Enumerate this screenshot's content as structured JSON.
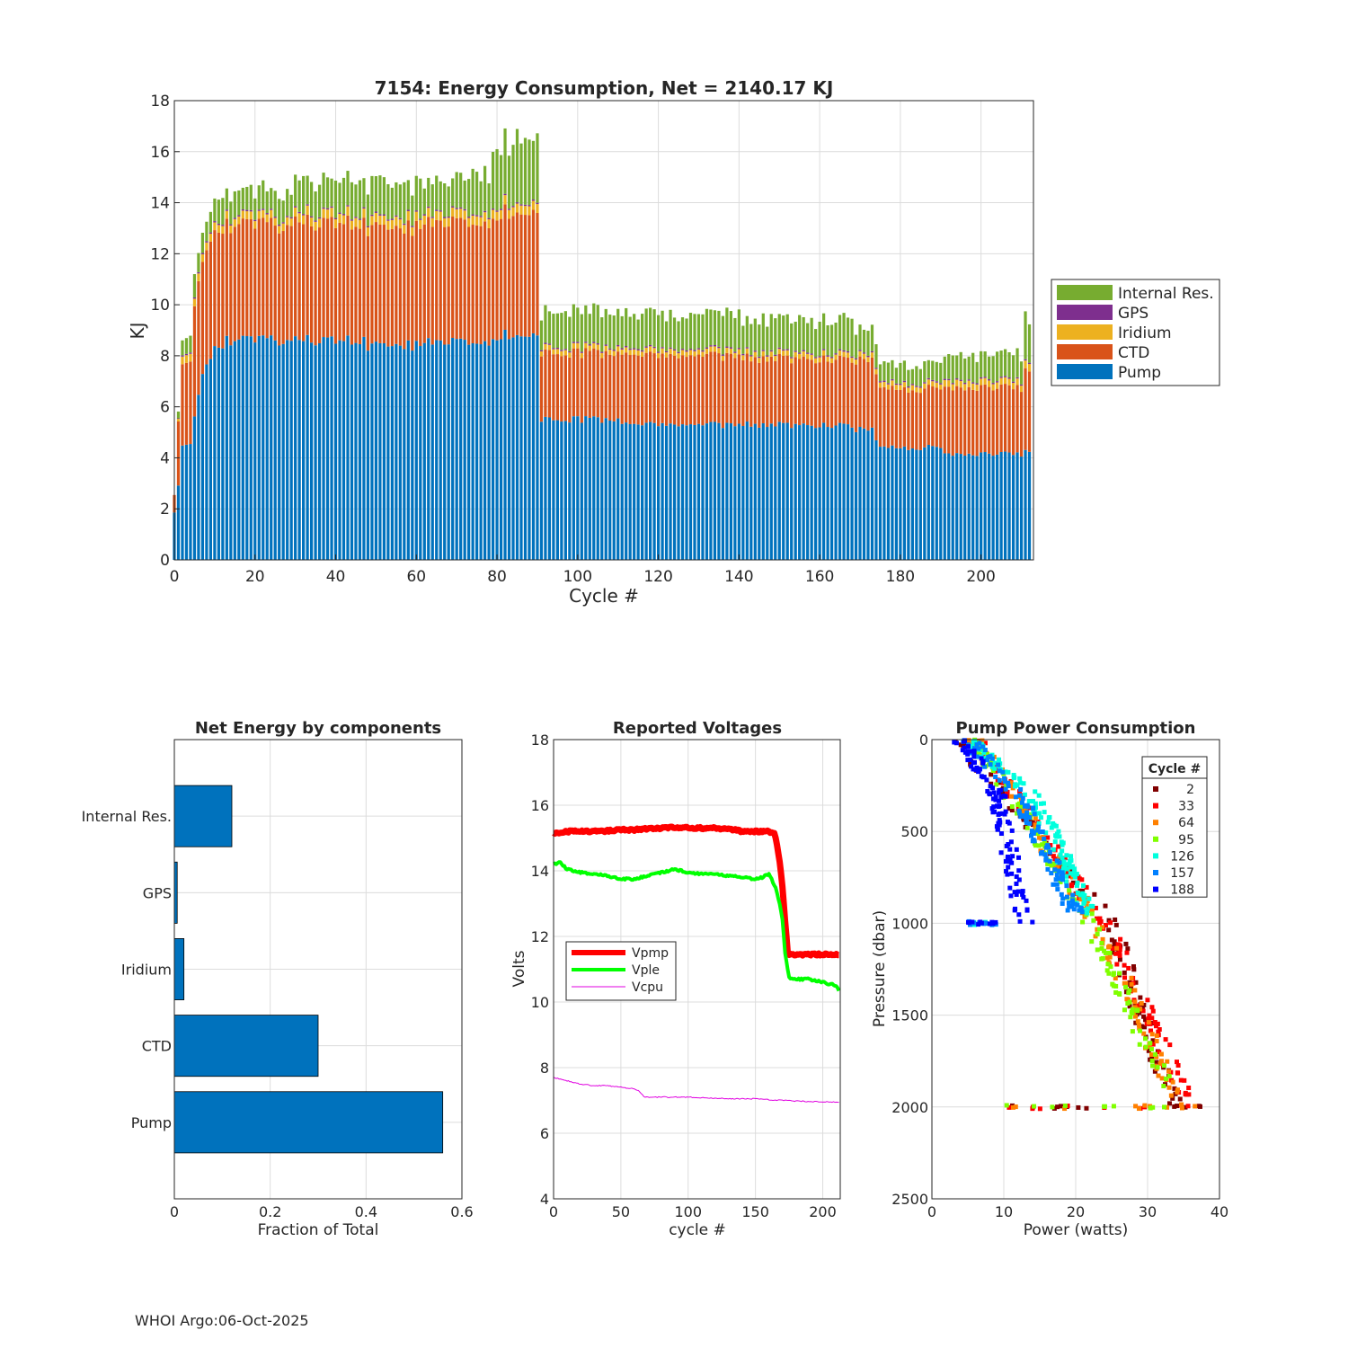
{
  "footer": "WHOI Argo:06-Oct-2025",
  "chart_data": [
    {
      "type": "bar",
      "stacked": true,
      "title": "7154: Energy Consumption,  Net = 2140.17 KJ",
      "xlabel": "Cycle #",
      "ylabel": "KJ",
      "xlim": [
        0,
        213
      ],
      "ylim": [
        0,
        18
      ],
      "xticks": [
        0,
        20,
        40,
        60,
        80,
        100,
        120,
        140,
        160,
        180,
        200
      ],
      "yticks": [
        0,
        2,
        4,
        6,
        8,
        10,
        12,
        14,
        16,
        18
      ],
      "grid": true,
      "legend_location": "east-outside",
      "legend_order": [
        "Internal Res.",
        "GPS",
        "Iridium",
        "CTD",
        "Pump"
      ],
      "colors": {
        "Pump": "#0072BD",
        "CTD": "#D95319",
        "Iridium": "#EDB120",
        "GPS": "#7E2F8E",
        "Internal Res.": "#77AC30"
      },
      "segments": [
        {
          "from": 0,
          "to": 0,
          "Pump": 1.9,
          "CTD": 0.7,
          "Iridium": 0.0,
          "GPS": 0.0,
          "Internal Res.": 0.0
        },
        {
          "from": 1,
          "to": 1,
          "Pump": 2.9,
          "CTD": 2.5,
          "Iridium": 0.1,
          "GPS": 0.02,
          "Internal Res.": 0.3
        },
        {
          "from": 2,
          "to": 4,
          "Pump": 4.5,
          "CTD": 3.2,
          "Iridium": 0.3,
          "GPS": 0.05,
          "Internal Res.": 0.6
        },
        {
          "from": 5,
          "to": 5,
          "Pump": 5.6,
          "CTD": 4.3,
          "Iridium": 0.3,
          "GPS": 0.05,
          "Internal Res.": 0.8
        },
        {
          "from": 6,
          "to": 6,
          "Pump": 6.4,
          "CTD": 4.4,
          "Iridium": 0.3,
          "GPS": 0.05,
          "Internal Res.": 0.8
        },
        {
          "from": 7,
          "to": 7,
          "Pump": 7.3,
          "CTD": 4.4,
          "Iridium": 0.3,
          "GPS": 0.05,
          "Internal Res.": 0.8
        },
        {
          "from": 8,
          "to": 9,
          "Pump": 7.7,
          "CTD": 4.5,
          "Iridium": 0.3,
          "GPS": 0.05,
          "Internal Res.": 0.9
        },
        {
          "from": 10,
          "to": 12,
          "Pump": 8.3,
          "CTD": 4.5,
          "Iridium": 0.3,
          "GPS": 0.05,
          "Internal Res.": 1.0
        },
        {
          "from": 13,
          "to": 29,
          "Pump": 8.6,
          "CTD": 4.5,
          "Iridium": 0.3,
          "GPS": 0.05,
          "Internal Res.": 0.95
        },
        {
          "from": 30,
          "to": 47,
          "Pump": 8.6,
          "CTD": 4.6,
          "Iridium": 0.35,
          "GPS": 0.05,
          "Internal Res.": 1.3
        },
        {
          "from": 48,
          "to": 61,
          "Pump": 8.4,
          "CTD": 4.6,
          "Iridium": 0.35,
          "GPS": 0.05,
          "Internal Res.": 1.4
        },
        {
          "from": 62,
          "to": 72,
          "Pump": 8.6,
          "CTD": 4.7,
          "Iridium": 0.35,
          "GPS": 0.05,
          "Internal Res.": 1.2
        },
        {
          "from": 73,
          "to": 78,
          "Pump": 8.4,
          "CTD": 4.6,
          "Iridium": 0.35,
          "GPS": 0.05,
          "Internal Res.": 1.6
        },
        {
          "from": 79,
          "to": 90,
          "Pump": 8.8,
          "CTD": 4.8,
          "Iridium": 0.35,
          "GPS": 0.05,
          "Internal Res.": 2.5
        },
        {
          "from": 91,
          "to": 110,
          "Pump": 5.5,
          "CTD": 2.6,
          "Iridium": 0.2,
          "GPS": 0.05,
          "Internal Res.": 1.3
        },
        {
          "from": 111,
          "to": 140,
          "Pump": 5.3,
          "CTD": 2.7,
          "Iridium": 0.2,
          "GPS": 0.05,
          "Internal Res.": 1.3
        },
        {
          "from": 141,
          "to": 168,
          "Pump": 5.3,
          "CTD": 2.6,
          "Iridium": 0.2,
          "GPS": 0.05,
          "Internal Res.": 1.3
        },
        {
          "from": 169,
          "to": 173,
          "Pump": 5.1,
          "CTD": 2.7,
          "Iridium": 0.2,
          "GPS": 0.05,
          "Internal Res.": 0.9
        },
        {
          "from": 174,
          "to": 174,
          "Pump": 4.7,
          "CTD": 2.6,
          "Iridium": 0.2,
          "GPS": 0.05,
          "Internal Res.": 0.8
        },
        {
          "from": 175,
          "to": 190,
          "Pump": 4.4,
          "CTD": 2.3,
          "Iridium": 0.2,
          "GPS": 0.05,
          "Internal Res.": 0.7
        },
        {
          "from": 191,
          "to": 210,
          "Pump": 4.15,
          "CTD": 2.6,
          "Iridium": 0.25,
          "GPS": 0.05,
          "Internal Res.": 1.0
        },
        {
          "from": 211,
          "to": 212,
          "Pump": 4.3,
          "CTD": 3.2,
          "Iridium": 0.3,
          "GPS": 0.05,
          "Internal Res.": 1.6
        }
      ]
    },
    {
      "type": "bar",
      "orientation": "horizontal",
      "title": "Net Energy by components",
      "xlabel": "Fraction of Total",
      "ylabel": "",
      "categories": [
        "Pump",
        "CTD",
        "Iridium",
        "GPS",
        "Internal Res."
      ],
      "values": [
        0.56,
        0.3,
        0.02,
        0.006,
        0.12
      ],
      "xlim": [
        0,
        0.6
      ],
      "xticks": [
        0,
        0.2,
        0.4,
        0.6
      ],
      "xticklabels": [
        "0",
        "0.2",
        "0.4",
        "0.6"
      ],
      "color": "#0072BD"
    },
    {
      "type": "line",
      "title": "Reported Voltages",
      "xlabel": "cycle #",
      "ylabel": "Volts",
      "xlim": [
        0,
        213
      ],
      "ylim": [
        4,
        18
      ],
      "xticks": [
        0,
        50,
        100,
        150,
        200
      ],
      "yticks": [
        4,
        6,
        8,
        10,
        12,
        14,
        16,
        18
      ],
      "legend_location": "center-left",
      "series": [
        {
          "name": "Vpmp",
          "color": "#FF0000",
          "width": 7,
          "x": [
            0,
            10,
            20,
            30,
            40,
            50,
            60,
            70,
            80,
            90,
            100,
            110,
            120,
            130,
            140,
            150,
            160,
            164,
            166,
            168,
            170,
            172,
            174,
            175,
            180,
            190,
            200,
            213
          ],
          "y": [
            15.15,
            15.2,
            15.2,
            15.2,
            15.22,
            15.25,
            15.25,
            15.28,
            15.3,
            15.32,
            15.32,
            15.3,
            15.3,
            15.28,
            15.2,
            15.2,
            15.2,
            15.15,
            14.8,
            14.3,
            13.5,
            12.5,
            11.5,
            11.45,
            11.45,
            11.45,
            11.45,
            11.45
          ]
        },
        {
          "name": "Vple",
          "color": "#00FF00",
          "width": 4,
          "x": [
            0,
            5,
            10,
            15,
            20,
            30,
            40,
            50,
            60,
            70,
            80,
            90,
            100,
            110,
            120,
            130,
            140,
            150,
            155,
            160,
            165,
            168,
            170,
            172,
            175,
            180,
            190,
            200,
            205,
            210,
            213
          ],
          "y": [
            14.2,
            14.25,
            14.05,
            14.0,
            13.95,
            13.9,
            13.85,
            13.75,
            13.75,
            13.85,
            13.95,
            14.05,
            13.95,
            13.9,
            13.9,
            13.85,
            13.8,
            13.75,
            13.8,
            13.9,
            13.5,
            13.0,
            12.5,
            11.5,
            10.75,
            10.7,
            10.7,
            10.6,
            10.55,
            10.5,
            10.25
          ]
        },
        {
          "name": "Vcpu",
          "color": "#E000E0",
          "width": 1,
          "x": [
            0,
            10,
            20,
            30,
            40,
            50,
            60,
            63,
            65,
            68,
            70,
            80,
            90,
            100,
            110,
            120,
            130,
            140,
            150,
            160,
            170,
            180,
            190,
            200,
            213
          ],
          "y": [
            7.7,
            7.6,
            7.5,
            7.45,
            7.45,
            7.4,
            7.35,
            7.3,
            7.2,
            7.1,
            7.1,
            7.1,
            7.1,
            7.1,
            7.08,
            7.07,
            7.05,
            7.05,
            7.05,
            7.02,
            7.0,
            6.98,
            6.97,
            6.96,
            6.95
          ]
        }
      ]
    },
    {
      "type": "scatter",
      "title": "Pump Power Consumption",
      "xlabel": "Power (watts)",
      "ylabel": "Pressure (dbar)",
      "xlim": [
        0,
        40
      ],
      "ylim": [
        0,
        2500
      ],
      "y_reversed": true,
      "xticks": [
        0,
        10,
        20,
        30,
        40
      ],
      "yticks": [
        0,
        500,
        1000,
        1500,
        2000,
        2500
      ],
      "legend_title": "Cycle #",
      "legend_location": "top-right",
      "series": [
        {
          "name": "2",
          "color": "#800000",
          "trend": [
            [
              3.5,
              0
            ],
            [
              25,
              1000
            ],
            [
              29,
              1500
            ],
            [
              34,
              2000
            ]
          ]
        },
        {
          "name": "33",
          "color": "#FF0000",
          "trend": [
            [
              6,
              0
            ],
            [
              24,
              1000
            ],
            [
              30,
              1500
            ],
            [
              36,
              2000
            ]
          ]
        },
        {
          "name": "64",
          "color": "#FF8000",
          "trend": [
            [
              6,
              0
            ],
            [
              23,
              1000
            ],
            [
              29,
              1500
            ],
            [
              34,
              2000
            ]
          ]
        },
        {
          "name": "95",
          "color": "#80FF00",
          "trend": [
            [
              6,
              0
            ],
            [
              22,
              1000
            ],
            [
              28,
              1500
            ],
            [
              34,
              2000
            ]
          ]
        },
        {
          "name": "126",
          "color": "#00FFDD",
          "trend": [
            [
              5,
              0
            ],
            [
              14,
              300
            ],
            [
              22,
              950
            ]
          ]
        },
        {
          "name": "157",
          "color": "#0080FF",
          "trend": [
            [
              5,
              0
            ],
            [
              12,
              300
            ],
            [
              20,
              950
            ]
          ]
        },
        {
          "name": "188",
          "color": "#0000FF",
          "trend": [
            [
              4,
              0
            ],
            [
              9,
              300
            ],
            [
              13,
              1000
            ]
          ]
        }
      ]
    }
  ]
}
